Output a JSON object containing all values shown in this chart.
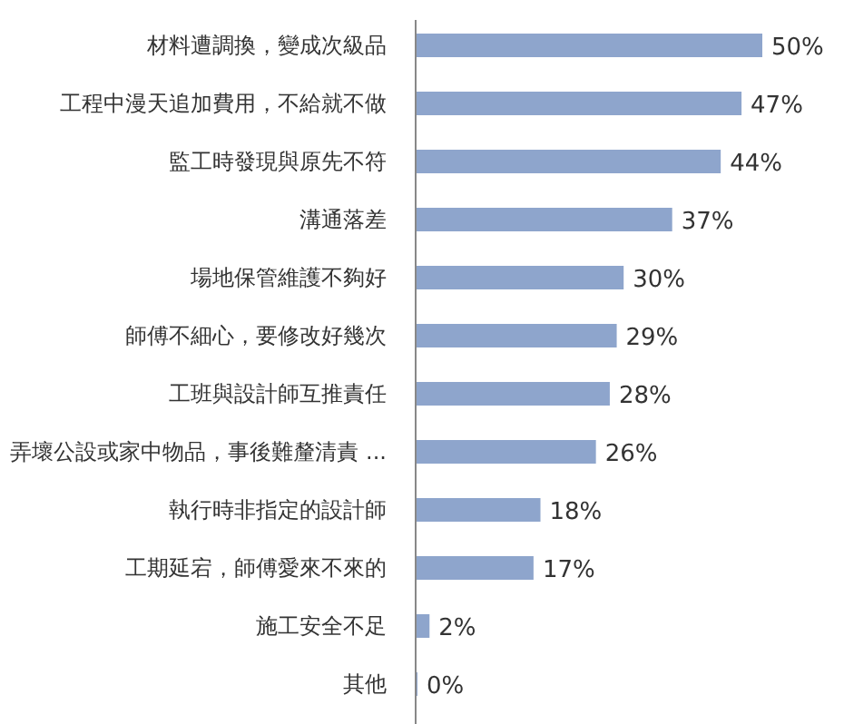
{
  "chart_data": {
    "type": "bar",
    "orientation": "horizontal",
    "color": "#8ea5cc",
    "categories": [
      "材料遭調換，變成次級品",
      "工程中漫天追加費用，不給就不做",
      "監工時發現與原先不符",
      "溝通落差",
      "場地保管維護不夠好",
      "師傅不細心，要修改好幾次",
      "工班與設計師互推責任",
      "弄壞公設或家中物品，事後難釐清責 ...",
      "執行時非指定的設計師",
      "工期延宕，師傅愛來不來的",
      "施工安全不足",
      "其他"
    ],
    "values": [
      50,
      47,
      44,
      37,
      30,
      29,
      28,
      26,
      18,
      17,
      2,
      0
    ],
    "value_labels": [
      "50%",
      "47%",
      "44%",
      "37%",
      "30%",
      "29%",
      "28%",
      "26%",
      "18%",
      "17%",
      "2%",
      "0%"
    ]
  }
}
